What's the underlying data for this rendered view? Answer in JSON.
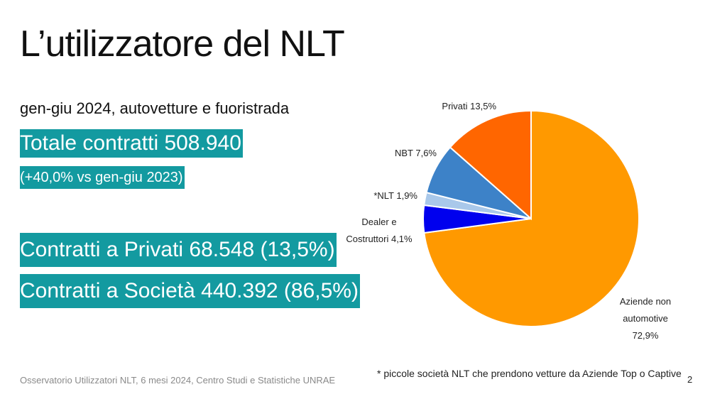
{
  "slide": {
    "title": "L’utilizzatore del NLT",
    "subtitle": "gen-giu 2024, autovetture e fuoristrada",
    "total": "Totale contratti 508.940",
    "change": "(+40,0% vs  gen-giu 2023)",
    "private": "Contratti a Privati  68.548 (13,5%)",
    "companies": "Contratti a Società 440.392 (86,5%)",
    "source": "Osservatorio Utilizzatori NLT, 6 mesi 2024, Centro Studi e Statistiche UNRAE",
    "footnote": "* piccole società NLT che prendono vetture da Aziende Top o Captive",
    "page_number": "2"
  },
  "chart_data": {
    "type": "pie",
    "start": "12 o'clock, clockwise",
    "slices": [
      {
        "label": "Aziende non automotive 72,9%",
        "value": 72.9,
        "color": "#ff9900"
      },
      {
        "label": "Dealer e Costruttori 4,1%",
        "value": 4.1,
        "color": "#0000ee"
      },
      {
        "label": "*NLT 1,9%",
        "value": 1.9,
        "color": "#a9c8ea"
      },
      {
        "label": "NBT 7,6%",
        "value": 7.6,
        "color": "#3d82c8"
      },
      {
        "label": "Privati 13,5%",
        "value": 13.5,
        "color": "#ff6600"
      }
    ],
    "label_lines": {
      "aziende": [
        "Aziende non",
        "automotive",
        "72,9%"
      ],
      "dealer": [
        "Dealer e",
        "Costruttori 4,1%"
      ],
      "nlt": "*NLT 1,9%",
      "nbt": "NBT 7,6%",
      "privati": "Privati 13,5%"
    }
  }
}
